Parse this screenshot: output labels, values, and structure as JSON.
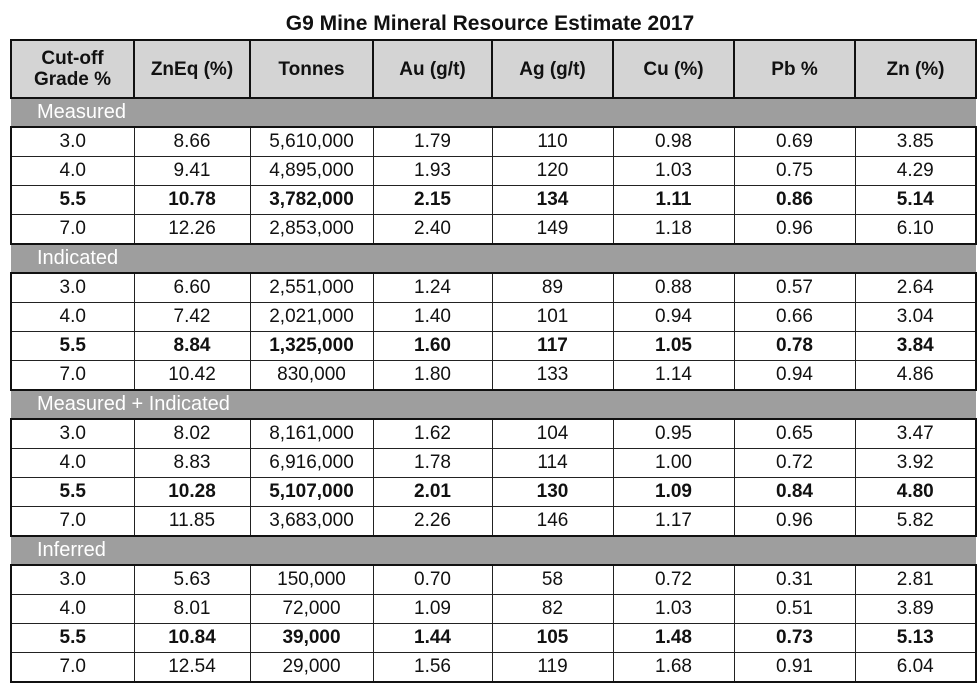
{
  "title": "G9 Mine Mineral Resource Estimate 2017",
  "headers": [
    "Cut-off\nGrade %",
    "ZnEq (%)",
    "Tonnes",
    "Au (g/t)",
    "Ag (g/t)",
    "Cu (%)",
    "Pb %",
    "Zn (%)"
  ],
  "sections": [
    {
      "name": "Measured",
      "rows": [
        {
          "bold": false,
          "cells": [
            "3.0",
            "8.66",
            "5,610,000",
            "1.79",
            "110",
            "0.98",
            "0.69",
            "3.85"
          ]
        },
        {
          "bold": false,
          "cells": [
            "4.0",
            "9.41",
            "4,895,000",
            "1.93",
            "120",
            "1.03",
            "0.75",
            "4.29"
          ]
        },
        {
          "bold": true,
          "cells": [
            "5.5",
            "10.78",
            "3,782,000",
            "2.15",
            "134",
            "1.11",
            "0.86",
            "5.14"
          ]
        },
        {
          "bold": false,
          "cells": [
            "7.0",
            "12.26",
            "2,853,000",
            "2.40",
            "149",
            "1.18",
            "0.96",
            "6.10"
          ]
        }
      ]
    },
    {
      "name": "Indicated",
      "rows": [
        {
          "bold": false,
          "cells": [
            "3.0",
            "6.60",
            "2,551,000",
            "1.24",
            "89",
            "0.88",
            "0.57",
            "2.64"
          ]
        },
        {
          "bold": false,
          "cells": [
            "4.0",
            "7.42",
            "2,021,000",
            "1.40",
            "101",
            "0.94",
            "0.66",
            "3.04"
          ]
        },
        {
          "bold": true,
          "cells": [
            "5.5",
            "8.84",
            "1,325,000",
            "1.60",
            "117",
            "1.05",
            "0.78",
            "3.84"
          ]
        },
        {
          "bold": false,
          "cells": [
            "7.0",
            "10.42",
            "830,000",
            "1.80",
            "133",
            "1.14",
            "0.94",
            "4.86"
          ]
        }
      ]
    },
    {
      "name": "Measured + Indicated",
      "rows": [
        {
          "bold": false,
          "cells": [
            "3.0",
            "8.02",
            "8,161,000",
            "1.62",
            "104",
            "0.95",
            "0.65",
            "3.47"
          ]
        },
        {
          "bold": false,
          "cells": [
            "4.0",
            "8.83",
            "6,916,000",
            "1.78",
            "114",
            "1.00",
            "0.72",
            "3.92"
          ]
        },
        {
          "bold": true,
          "cells": [
            "5.5",
            "10.28",
            "5,107,000",
            "2.01",
            "130",
            "1.09",
            "0.84",
            "4.80"
          ]
        },
        {
          "bold": false,
          "cells": [
            "7.0",
            "11.85",
            "3,683,000",
            "2.26",
            "146",
            "1.17",
            "0.96",
            "5.82"
          ]
        }
      ]
    },
    {
      "name": "Inferred",
      "rows": [
        {
          "bold": false,
          "cells": [
            "3.0",
            "5.63",
            "150,000",
            "0.70",
            "58",
            "0.72",
            "0.31",
            "2.81"
          ]
        },
        {
          "bold": false,
          "cells": [
            "4.0",
            "8.01",
            "72,000",
            "1.09",
            "82",
            "1.03",
            "0.51",
            "3.89"
          ]
        },
        {
          "bold": true,
          "cells": [
            "5.5",
            "10.84",
            "39,000",
            "1.44",
            "105",
            "1.48",
            "0.73",
            "5.13"
          ]
        },
        {
          "bold": false,
          "cells": [
            "7.0",
            "12.54",
            "29,000",
            "1.56",
            "119",
            "1.68",
            "0.91",
            "6.04"
          ]
        }
      ]
    }
  ],
  "colors": {
    "section_band": "#9e9e9e",
    "header_bg": "#d4d4d4"
  }
}
